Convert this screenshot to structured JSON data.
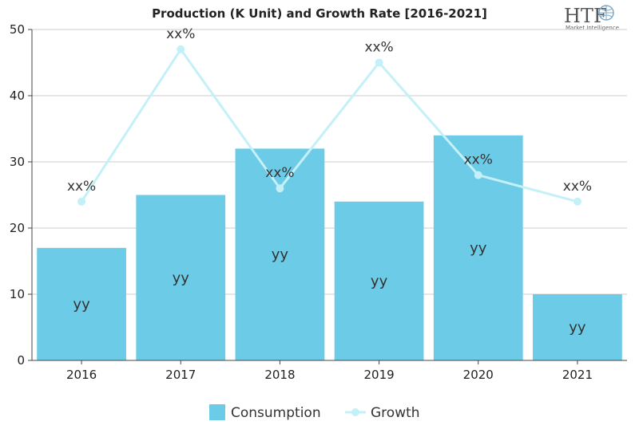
{
  "chart_data": {
    "type": "bar",
    "title": "Production (K Unit) and Growth Rate [2016-2021]",
    "categories": [
      "2016",
      "2017",
      "2018",
      "2019",
      "2020",
      "2021"
    ],
    "ylim": [
      0,
      50
    ],
    "yticks": [
      0,
      10,
      20,
      30,
      40,
      50
    ],
    "grid": true,
    "legend_position": "bottom",
    "series": [
      {
        "name": "Consumption",
        "kind": "bar",
        "color": "#6ccbe6",
        "values": [
          17,
          25,
          32,
          24,
          34,
          10
        ],
        "labels": [
          "yy",
          "yy",
          "yy",
          "yy",
          "yy",
          "yy"
        ]
      },
      {
        "name": "Growth",
        "kind": "line",
        "color": "#c4f0f8",
        "values": [
          24,
          47,
          26,
          45,
          28,
          24
        ],
        "labels": [
          "xx%",
          "xx%",
          "xx%",
          "xx%",
          "xx%",
          "xx%"
        ]
      }
    ]
  },
  "logo": {
    "name": "HTF",
    "tagline": "Market Intelligence"
  }
}
